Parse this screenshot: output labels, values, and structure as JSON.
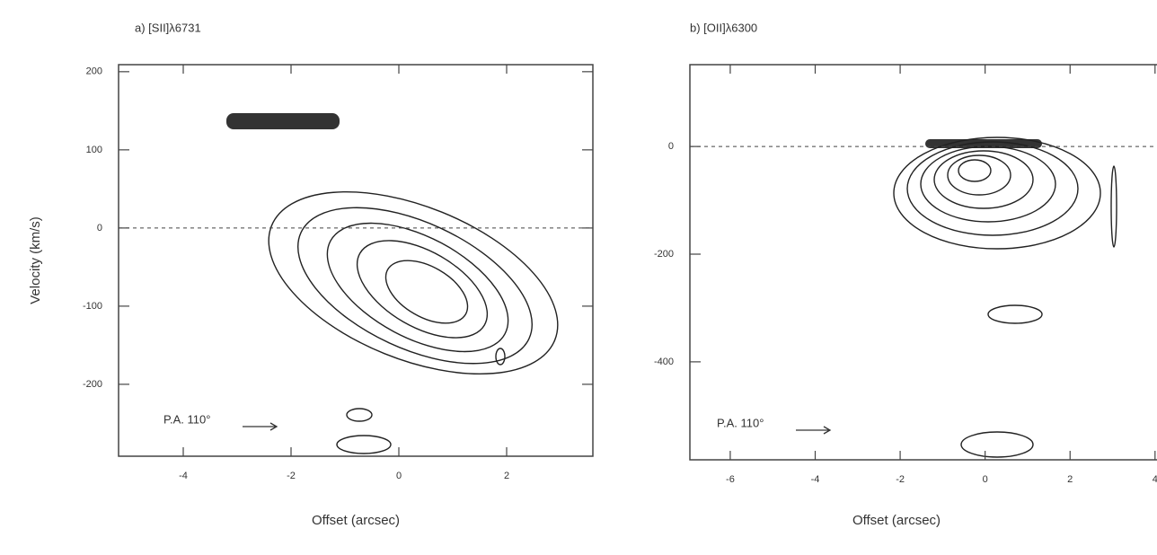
{
  "chart_data": [
    {
      "type": "contour",
      "title": "a) [SII]λ6731",
      "xlabel": "Offset (arcsec)",
      "ylabel": "Velocity (km/s)",
      "xlim": [
        -5.2,
        3.6
      ],
      "ylim": [
        -292,
        209
      ],
      "xticks": [
        -4,
        -2,
        0,
        2
      ],
      "yticks": [
        -200,
        -100,
        0,
        100,
        200
      ],
      "reference_line": 0,
      "annotation": "P.A. 110°"
    },
    {
      "type": "contour",
      "title": "b) [OII]λ6300",
      "xlabel": "Offset (arcsec)",
      "xlim": [
        -6.95,
        4.3
      ],
      "ylim": [
        -582,
        152
      ],
      "xticks": [
        -6,
        -4,
        -2,
        0,
        2,
        4
      ],
      "yticks": [
        -400,
        -200,
        0
      ],
      "reference_line": 0,
      "annotation": "P.A. 110°"
    }
  ]
}
